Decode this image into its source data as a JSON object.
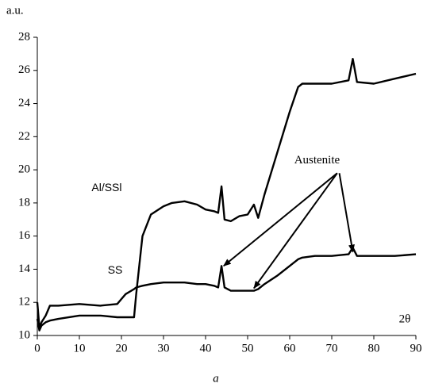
{
  "chart_data": {
    "type": "line",
    "y_label": "a.u.",
    "x_label": "2θ",
    "panel_label": "a",
    "x": [
      0,
      0.5,
      1,
      2,
      3,
      5,
      10,
      15,
      19,
      20,
      21,
      23,
      23.5,
      25,
      27,
      30,
      32,
      35,
      38,
      40,
      42,
      43,
      43.8,
      44.5,
      46,
      48,
      50,
      51.5,
      52.5,
      54,
      57,
      60,
      62,
      63,
      66,
      70,
      74,
      75,
      76,
      80,
      85,
      90
    ],
    "series": [
      {
        "name": "Al/SSl",
        "color": "#000000",
        "values": [
          11.0,
          10.3,
          10.6,
          10.8,
          10.9,
          11.0,
          11.2,
          11.2,
          11.1,
          11.1,
          11.1,
          11.1,
          12.5,
          16.0,
          17.3,
          17.8,
          18.0,
          18.1,
          17.9,
          17.6,
          17.5,
          17.4,
          19.0,
          17.0,
          16.9,
          17.2,
          17.3,
          17.9,
          17.1,
          18.5,
          21.0,
          23.5,
          25.0,
          25.2,
          25.2,
          25.2,
          25.4,
          26.7,
          25.3,
          25.2,
          25.5,
          25.8
        ]
      },
      {
        "name": "SS",
        "color": "#000000",
        "values": [
          12.0,
          10.5,
          10.8,
          11.2,
          11.8,
          11.8,
          11.9,
          11.8,
          11.9,
          12.2,
          12.5,
          12.8,
          12.9,
          13.0,
          13.1,
          13.2,
          13.2,
          13.2,
          13.1,
          13.1,
          13.0,
          12.9,
          14.2,
          12.9,
          12.7,
          12.7,
          12.7,
          12.7,
          12.8,
          13.1,
          13.6,
          14.2,
          14.6,
          14.7,
          14.8,
          14.8,
          14.9,
          15.3,
          14.8,
          14.8,
          14.8,
          14.9
        ]
      }
    ],
    "annotations": [
      {
        "text": "Austenite"
      }
    ],
    "xlim": [
      0,
      90
    ],
    "xticks": [
      0,
      10,
      20,
      30,
      40,
      50,
      60,
      70,
      80,
      90
    ],
    "ylim": [
      10,
      28
    ],
    "yticks": [
      10,
      12,
      14,
      16,
      18,
      20,
      22,
      24,
      26,
      28
    ],
    "grid": false
  }
}
